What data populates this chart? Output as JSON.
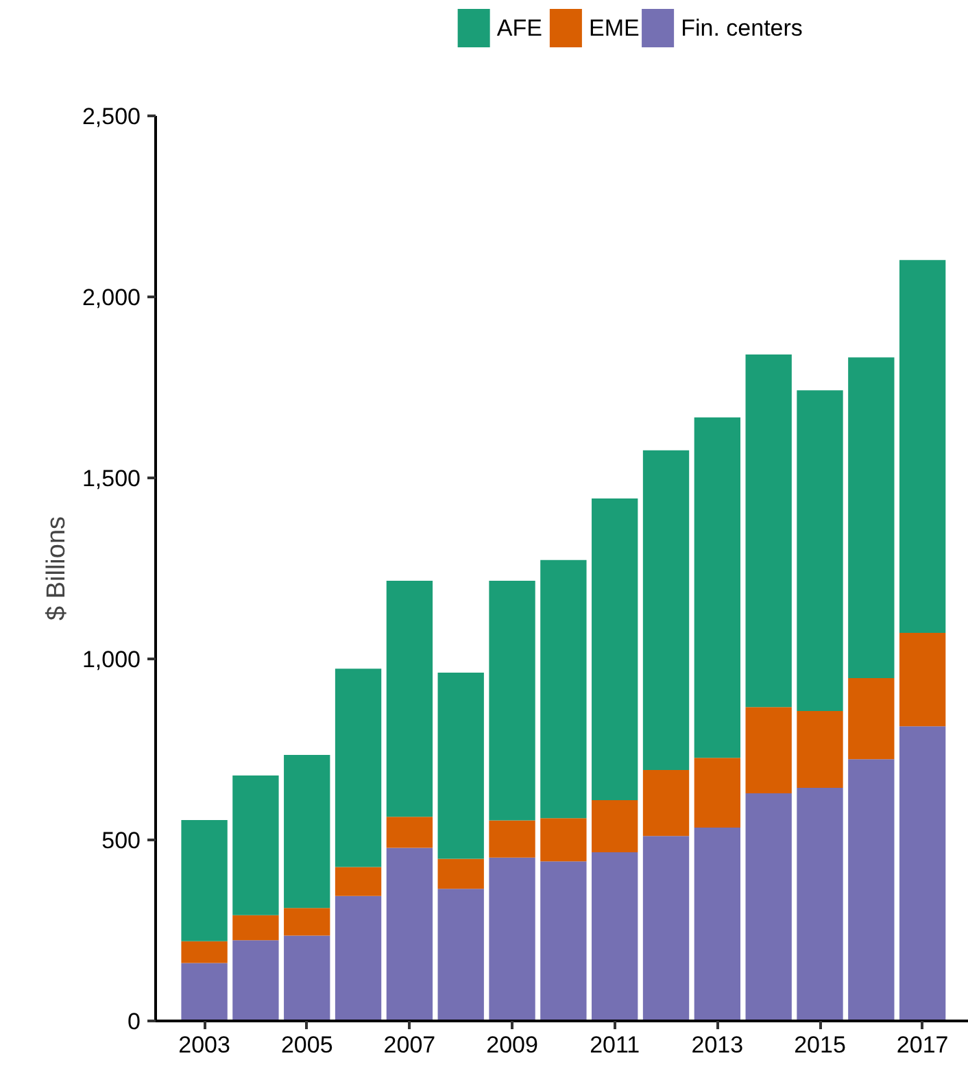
{
  "chart_data": {
    "type": "bar",
    "stacked": true,
    "ylabel": "$ Billions",
    "categories": [
      "2003",
      null,
      "2005",
      null,
      "2007",
      null,
      "2009",
      null,
      "2011",
      null,
      "2013",
      null,
      "2015",
      null,
      "2017"
    ],
    "series": [
      {
        "name": "Fin. centers",
        "color": "#7570b3",
        "values": [
          160,
          223,
          236,
          345,
          478,
          365,
          451,
          441,
          466,
          511,
          534,
          629,
          644,
          723,
          814
        ]
      },
      {
        "name": "EME",
        "color": "#d95f02",
        "values": [
          60,
          69,
          76,
          80,
          86,
          83,
          103,
          119,
          144,
          182,
          193,
          238,
          212,
          224,
          258
        ]
      },
      {
        "name": "AFE",
        "color": "#1b9e77",
        "values": [
          335,
          386,
          423,
          548,
          652,
          514,
          662,
          713,
          833,
          883,
          940,
          974,
          886,
          886,
          1030
        ]
      }
    ],
    "ylim": [
      0,
      2500
    ],
    "yticks": [
      0,
      500,
      {
        "value": 1000,
        "label": "1,000"
      },
      {
        "value": 1500,
        "label": "1,500"
      },
      {
        "value": 2000,
        "label": "2,000"
      },
      {
        "value": 2500,
        "label": "2,500"
      }
    ],
    "grid": false,
    "legend": "top"
  }
}
